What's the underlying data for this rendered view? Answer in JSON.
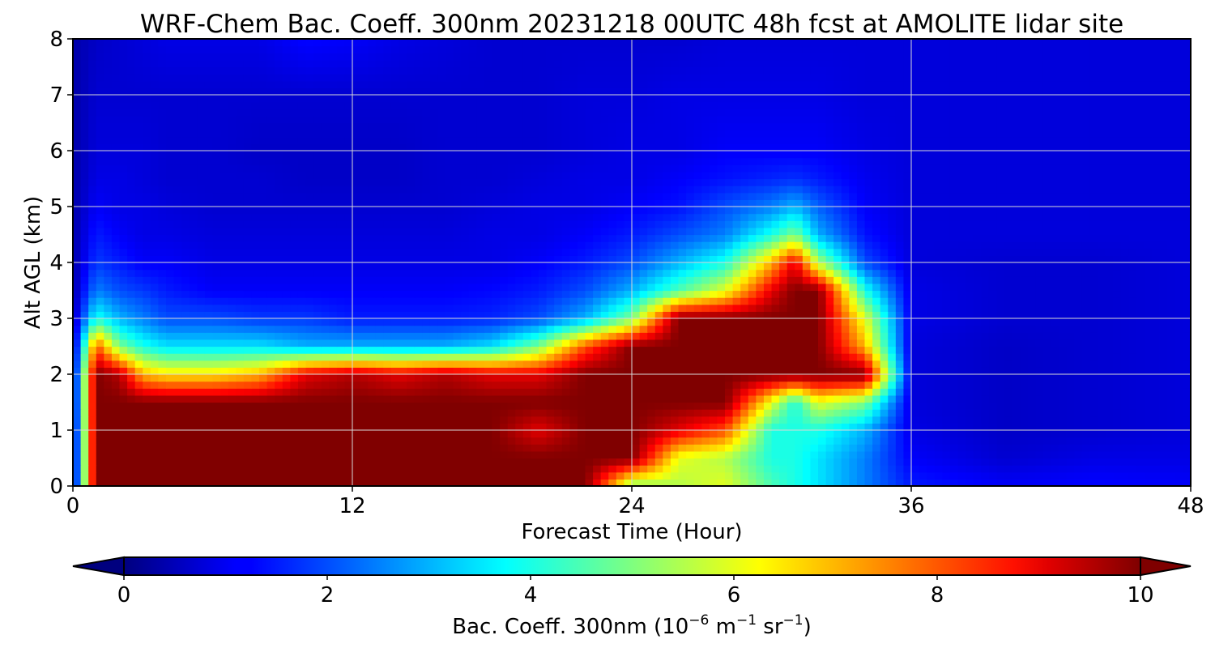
{
  "chart_data": {
    "type": "heatmap",
    "title": "WRF-Chem Bac. Coeff. 300nm  20231218 00UTC 48h fcst at AMOLITE lidar site",
    "xlabel": "Forecast Time (Hour)",
    "ylabel": "Alt AGL (km)",
    "xlim": [
      0,
      48
    ],
    "ylim": [
      0,
      8
    ],
    "xticks": [
      0,
      12,
      24,
      36,
      48
    ],
    "yticks": [
      0,
      1,
      2,
      3,
      4,
      5,
      6,
      7,
      8
    ],
    "grid": true,
    "colormap": "jet",
    "colorbar": {
      "orientation": "horizontal",
      "placement": "bottom",
      "range": [
        0,
        10
      ],
      "ticks": [
        0,
        2,
        4,
        6,
        8,
        10
      ],
      "extend": "both",
      "label_main": "Bac. Coeff. 300nm  (10",
      "label_exp1": "−6",
      "label_mid": " m",
      "label_exp2": "−1",
      "label_mid2": " sr",
      "label_exp3": "−1",
      "label_end": ")"
    },
    "times": [
      0,
      1,
      2,
      3,
      4,
      6,
      8,
      10,
      12,
      14,
      16,
      18,
      20,
      22,
      24,
      26,
      28,
      30,
      31,
      32,
      34,
      36,
      40,
      44,
      48
    ],
    "heights": [
      0,
      0.5,
      1,
      1.5,
      2,
      2.5,
      3,
      3.5,
      4,
      4.5,
      5,
      5.5,
      6,
      7,
      8
    ],
    "values": [
      [
        0.5,
        10,
        10,
        10,
        10,
        10,
        10,
        10,
        10,
        10,
        10,
        10,
        10,
        10,
        5,
        5.5,
        6,
        4.5,
        4,
        3.5,
        2.5,
        1.5,
        1.2,
        1.3,
        1.2
      ],
      [
        0.5,
        10,
        10,
        10,
        10,
        10,
        10,
        10,
        10,
        10,
        10,
        10,
        10,
        10,
        10,
        6,
        5.5,
        4,
        4,
        3.5,
        2.5,
        1.2,
        0.8,
        1.0,
        1.0
      ],
      [
        0.5,
        10,
        10,
        10,
        10,
        10,
        10,
        10,
        10,
        10,
        10,
        10,
        9,
        10,
        10,
        9,
        8,
        4,
        4,
        4,
        3,
        1.0,
        0.7,
        0.8,
        0.9
      ],
      [
        0.6,
        10,
        10,
        10,
        10,
        10,
        10,
        10,
        10,
        10,
        10,
        10,
        10,
        10,
        10,
        10,
        10,
        6,
        4,
        6,
        5,
        0.9,
        0.7,
        0.8,
        0.9
      ],
      [
        0.6,
        10,
        9.5,
        7,
        6.5,
        6.5,
        7,
        9,
        9.5,
        9,
        9.5,
        9,
        9,
        10,
        10,
        10,
        10,
        10,
        10,
        10,
        10,
        0.9,
        0.7,
        0.8,
        0.9
      ],
      [
        0.5,
        8,
        5,
        4,
        3.5,
        3.5,
        3.5,
        3,
        3,
        3,
        3,
        3.5,
        5,
        8,
        10,
        10,
        10,
        10,
        10,
        10,
        7,
        0.9,
        0.7,
        0.8,
        0.9
      ],
      [
        0.5,
        4,
        3,
        2.5,
        2,
        2,
        1.8,
        1.8,
        1.5,
        1.5,
        1.5,
        1.6,
        2,
        3,
        5,
        10,
        10,
        10,
        10,
        10,
        6,
        1.0,
        0.8,
        0.8,
        0.9
      ],
      [
        0.4,
        2.5,
        2,
        1.8,
        1.5,
        1.2,
        1.2,
        1.2,
        1.2,
        1.2,
        1.2,
        1.3,
        1.5,
        2,
        3,
        4.5,
        6,
        9,
        10,
        10,
        4,
        1.0,
        0.8,
        0.8,
        0.9
      ],
      [
        0.4,
        1.8,
        1.5,
        1.2,
        1.2,
        1.0,
        1.0,
        1.0,
        1.0,
        1.0,
        1.0,
        1.0,
        1.2,
        1.5,
        2,
        3,
        4,
        7,
        9,
        5.5,
        2,
        0.9,
        0.8,
        0.8,
        0.9
      ],
      [
        0.4,
        1.5,
        1.2,
        1.0,
        1.0,
        0.9,
        0.9,
        0.9,
        0.9,
        0.9,
        0.9,
        1.0,
        1.0,
        1.2,
        1.5,
        2,
        2.5,
        4,
        5,
        3,
        1.4,
        0.9,
        0.9,
        0.9,
        0.9
      ],
      [
        0.4,
        1.2,
        1.0,
        1.0,
        0.9,
        0.8,
        0.8,
        0.8,
        0.8,
        0.8,
        0.8,
        0.9,
        1.0,
        1.0,
        1.2,
        1.4,
        2,
        2.5,
        3,
        2.2,
        1.2,
        0.9,
        0.9,
        0.9,
        0.9
      ],
      [
        0.4,
        1.0,
        1.0,
        0.9,
        0.8,
        0.8,
        0.8,
        0.7,
        0.7,
        0.7,
        0.8,
        0.8,
        0.9,
        1.0,
        1.0,
        1.2,
        1.4,
        1.6,
        1.7,
        1.5,
        1.1,
        0.9,
        0.9,
        0.9,
        0.9
      ],
      [
        0.4,
        0.9,
        0.9,
        0.9,
        0.8,
        0.8,
        0.7,
        0.7,
        0.7,
        0.7,
        0.8,
        0.8,
        0.8,
        0.9,
        1.0,
        1.0,
        1.2,
        1.2,
        1.2,
        1.2,
        1.0,
        0.9,
        0.9,
        0.9,
        0.9
      ],
      [
        0.4,
        0.8,
        0.8,
        0.8,
        0.8,
        0.8,
        0.8,
        0.8,
        0.8,
        0.8,
        0.8,
        0.8,
        0.8,
        0.9,
        0.9,
        1.0,
        1.0,
        1.0,
        1.0,
        1.0,
        0.9,
        0.9,
        0.9,
        0.9,
        0.9
      ],
      [
        0.4,
        0.7,
        0.8,
        0.9,
        1.0,
        1.0,
        1.0,
        1.3,
        1.2,
        1.0,
        0.9,
        0.8,
        0.8,
        0.8,
        0.8,
        0.8,
        0.9,
        0.9,
        0.9,
        0.9,
        0.9,
        0.9,
        0.9,
        0.9,
        0.9
      ]
    ]
  }
}
